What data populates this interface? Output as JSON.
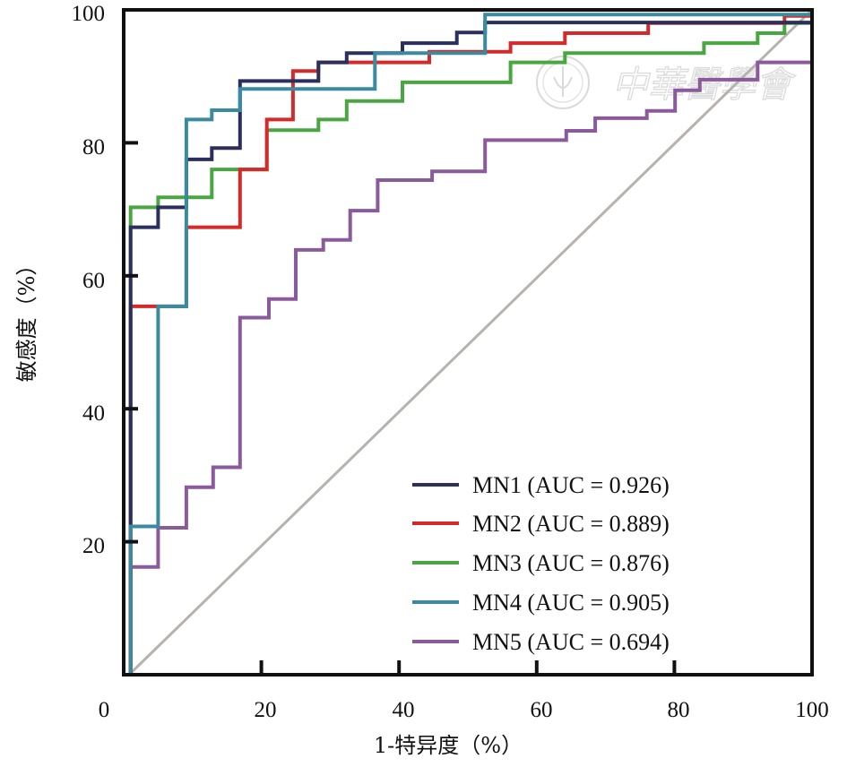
{
  "chart_data": {
    "type": "line",
    "title": "",
    "xlabel": "1-特异度（%）",
    "ylabel": "敏感度（%）",
    "xlim": [
      0,
      100
    ],
    "ylim": [
      0,
      100
    ],
    "x_ticks": [
      "0",
      "20",
      "40",
      "60",
      "80",
      "100"
    ],
    "y_ticks": [
      "20",
      "40",
      "60",
      "80",
      "100"
    ],
    "x_tick_values": [
      0,
      20,
      40,
      60,
      80,
      100
    ],
    "y_tick_values": [
      20,
      40,
      60,
      80,
      100
    ],
    "grid": false,
    "legend_position": "bottom-right",
    "reference_line": {
      "x": [
        0,
        100
      ],
      "y": [
        0,
        100
      ],
      "color": "#b8b2ae"
    },
    "watermark": "中華醫學會",
    "series": [
      {
        "name": "MN1",
        "label": "MN1 (AUC = 0.926)",
        "auc": 0.926,
        "color": "#2b2f5e",
        "x": [
          1.0,
          1.0,
          5.0,
          5.0,
          9.1,
          9.1,
          12.8,
          12.8,
          16.9,
          16.9,
          28.3,
          28.3,
          32.4,
          32.4,
          40.5,
          40.5,
          48.4,
          48.4,
          52.5,
          52.5,
          100
        ],
        "y": [
          0,
          67.3,
          67.3,
          70.3,
          70.3,
          77.5,
          77.5,
          79.2,
          79.2,
          89.3,
          89.3,
          92.1,
          92.1,
          93.5,
          93.5,
          95.0,
          95.0,
          96.6,
          96.6,
          98.1,
          98.1
        ]
      },
      {
        "name": "MN2",
        "label": "MN2 (AUC = 0.889)",
        "auc": 0.889,
        "color": "#d42a2a",
        "x": [
          1.0,
          1.0,
          5.0,
          5.0,
          9.1,
          9.1,
          16.9,
          16.9,
          20.8,
          20.8,
          24.6,
          24.6,
          28.3,
          28.3,
          44.4,
          44.4,
          56.2,
          56.2,
          64.1,
          64.1,
          76.2,
          76.2,
          96.0,
          96.0,
          100
        ],
        "y": [
          0,
          55.4,
          55.4,
          55.4,
          55.4,
          67.3,
          67.3,
          76.0,
          76.0,
          83.5,
          83.5,
          90.8,
          90.8,
          92.1,
          92.1,
          93.7,
          93.7,
          95.0,
          95.0,
          96.5,
          96.5,
          98.0,
          98.0,
          99.1,
          99.1
        ]
      },
      {
        "name": "MN3",
        "label": "MN3 (AUC = 0.876)",
        "auc": 0.876,
        "color": "#4aa641",
        "x": [
          1.0,
          1.0,
          5.0,
          5.0,
          12.8,
          12.8,
          20.8,
          20.8,
          28.3,
          28.3,
          32.4,
          32.4,
          40.5,
          40.5,
          56.2,
          56.2,
          64.1,
          64.1,
          84.3,
          84.3,
          92.1,
          92.1,
          96.0,
          96.0,
          100
        ],
        "y": [
          0,
          70.3,
          70.3,
          71.8,
          71.8,
          76.0,
          76.0,
          81.9,
          81.9,
          83.5,
          83.5,
          86.3,
          86.3,
          89.1,
          89.1,
          92.1,
          92.1,
          93.5,
          93.5,
          95.0,
          95.0,
          96.5,
          96.5,
          98.0,
          98.0
        ]
      },
      {
        "name": "MN4",
        "label": "MN4 (AUC = 0.905)",
        "auc": 0.905,
        "color": "#3a8aa0",
        "x": [
          1.0,
          1.0,
          5.0,
          5.0,
          9.1,
          9.1,
          12.8,
          12.8,
          16.9,
          16.9,
          36.5,
          36.5,
          52.5,
          52.5,
          100
        ],
        "y": [
          0,
          22.3,
          22.3,
          55.4,
          55.4,
          83.5,
          83.5,
          84.9,
          84.9,
          88.1,
          88.1,
          93.5,
          93.5,
          99.3,
          99.3
        ]
      },
      {
        "name": "MN5",
        "label": "MN5 (AUC = 0.694)",
        "auc": 0.694,
        "color": "#8a5a9c",
        "x": [
          1.0,
          1.0,
          5.0,
          5.0,
          9.1,
          9.1,
          13.0,
          13.0,
          16.9,
          16.9,
          21.1,
          21.1,
          25.0,
          25.0,
          29.0,
          29.0,
          32.9,
          32.9,
          36.9,
          36.9,
          44.8,
          44.8,
          52.5,
          52.5,
          64.3,
          64.3,
          68.5,
          68.5,
          76.0,
          76.0,
          80.1,
          80.1,
          83.7,
          83.7,
          92.1,
          92.1,
          100
        ],
        "y": [
          0,
          16.2,
          16.2,
          22.1,
          22.1,
          28.2,
          28.2,
          31.2,
          31.2,
          53.7,
          53.7,
          56.5,
          56.5,
          63.9,
          63.9,
          65.4,
          65.4,
          69.8,
          69.8,
          74.4,
          74.4,
          75.7,
          75.7,
          80.4,
          80.4,
          81.8,
          81.8,
          83.7,
          83.7,
          84.8,
          84.8,
          87.9,
          87.9,
          89.5,
          89.5,
          92.1,
          92.1
        ]
      }
    ]
  }
}
